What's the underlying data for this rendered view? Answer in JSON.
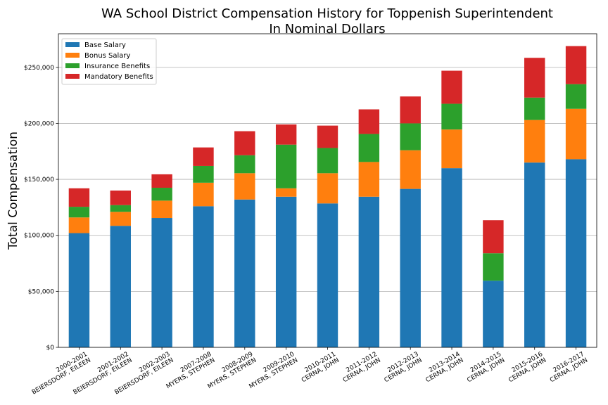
{
  "chart_data": {
    "type": "bar",
    "stacked": true,
    "title": [
      "WA School District Compensation History for Toppenish Superintendent",
      "In Nominal Dollars"
    ],
    "xlabel": "",
    "ylabel": "Total Compensation",
    "ylim": [
      0,
      280000
    ],
    "yticks": [
      0,
      50000,
      100000,
      150000,
      200000,
      250000
    ],
    "ytick_labels": [
      "$0",
      "$50,000",
      "$100,000",
      "$150,000",
      "$200,000",
      "$250,000"
    ],
    "grid": "horizontal",
    "legend_position": "top-left",
    "categories": [
      [
        "2000-2001",
        "BEIERSDORF, EILEEN"
      ],
      [
        "2001-2002",
        "BEIERSDORF, EILEEN"
      ],
      [
        "2002-2003",
        "BEIERSDORF, EILEEN"
      ],
      [
        "2007-2008",
        "MYERS, STEPHEN"
      ],
      [
        "2008-2009",
        "MYERS, STEPHEN"
      ],
      [
        "2009-2010",
        "MYERS, STEPHEN"
      ],
      [
        "2010-2011",
        "CERNA, JOHN"
      ],
      [
        "2011-2012",
        "CERNA, JOHN"
      ],
      [
        "2012-2013",
        "CERNA, JOHN"
      ],
      [
        "2013-2014",
        "CERNA, JOHN"
      ],
      [
        "2014-2015",
        "CERNA, JOHN"
      ],
      [
        "2015-2016",
        "CERNA, JOHN"
      ],
      [
        "2016-2017",
        "CERNA, JOHN"
      ]
    ],
    "series": [
      {
        "name": "Base Salary",
        "color": "#1f77b4",
        "values": [
          102000,
          108500,
          115500,
          126000,
          132000,
          134500,
          128500,
          134500,
          141500,
          160000,
          59500,
          165000,
          168000
        ]
      },
      {
        "name": "Bonus Salary",
        "color": "#ff7f0e",
        "values": [
          14000,
          12500,
          15500,
          21000,
          23500,
          7500,
          27000,
          31000,
          34500,
          34500,
          0,
          38000,
          45000
        ]
      },
      {
        "name": "Insurance Benefits",
        "color": "#2ca02c",
        "values": [
          9500,
          6000,
          11500,
          15000,
          16000,
          39000,
          22500,
          25000,
          24000,
          23000,
          24500,
          20000,
          22000
        ]
      },
      {
        "name": "Mandatory Benefits",
        "color": "#d62728",
        "values": [
          16500,
          13000,
          12000,
          16500,
          21500,
          18000,
          20000,
          22000,
          24000,
          29500,
          29500,
          35500,
          34000
        ]
      }
    ]
  }
}
